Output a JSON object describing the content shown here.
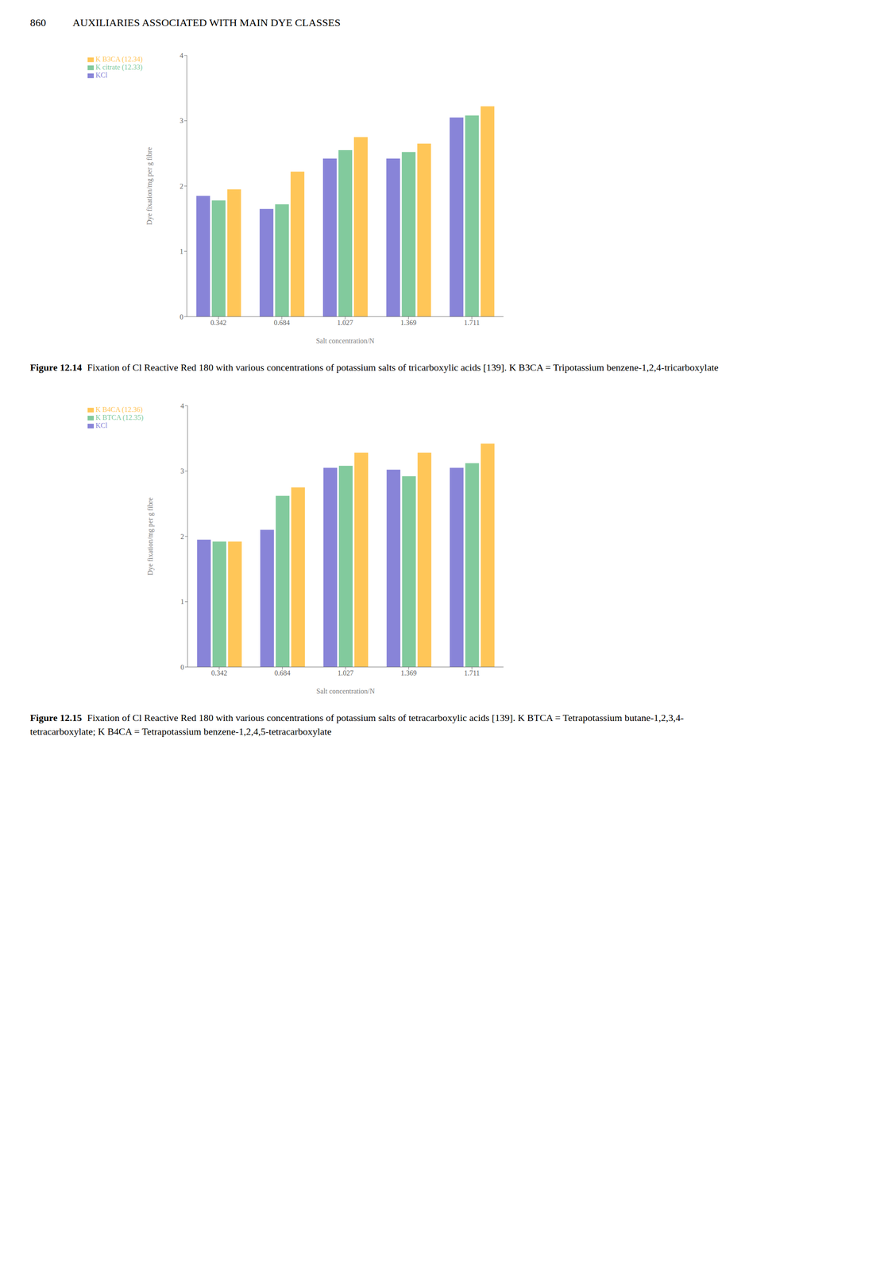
{
  "chart_data": [
    {
      "type": "bar",
      "x_label": "Salt concentration/N",
      "y_label": "Dye fixation/mg per g fibre",
      "categories": [
        "0.342",
        "0.684",
        "1.027",
        "1.369",
        "1.711"
      ],
      "series": [
        {
          "name": "KCl",
          "color": "#8884d8",
          "values": [
            1.85,
            1.65,
            2.42,
            2.42,
            3.05
          ]
        },
        {
          "name": "K citrate (12.33)",
          "color": "#82ca9d",
          "values": [
            1.78,
            1.72,
            2.55,
            2.52,
            3.08
          ]
        },
        {
          "name": "K B3CA (12.34)",
          "color": "#ffc658",
          "values": [
            1.95,
            2.22,
            2.75,
            2.65,
            3.22
          ]
        }
      ],
      "ylim": [
        0,
        4
      ],
      "yticks": [
        0,
        1,
        2,
        3,
        4
      ],
      "grid": false,
      "legend": "upper left",
      "annotations": [
        "860",
        "AUXILIARIES ASSOCIATED WITH MAIN DYE CLASSES",
        "Figure 12.14",
        "Fixation of Cl Reactive Red 180 with various concentrations of potassium salts of tricarboxylic acids [139]. K B3CA = Tripotassium benzene-1,2,4-tricarboxylate"
      ]
    },
    {
      "type": "bar",
      "x_label": "Salt concentration/N",
      "y_label": "Dye fixation/mg per g fibre",
      "categories": [
        "0.342",
        "0.684",
        "1.027",
        "1.369",
        "1.711"
      ],
      "series": [
        {
          "name": "KCl",
          "color": "#8884d8",
          "values": [
            1.95,
            2.1,
            3.05,
            3.02,
            3.05
          ]
        },
        {
          "name": "K BTCA (12.35)",
          "color": "#82ca9d",
          "values": [
            1.92,
            2.62,
            3.08,
            2.92,
            3.12
          ]
        },
        {
          "name": "K B4CA (12.36)",
          "color": "#ffc658",
          "values": [
            1.92,
            2.75,
            3.28,
            3.28,
            3.42
          ]
        }
      ],
      "ylim": [
        0,
        4
      ],
      "yticks": [
        0,
        1,
        2,
        3,
        4
      ],
      "grid": false,
      "legend": "upper left",
      "annotations": [
        "Figure 12.15",
        "Fixation of Cl Reactive Red 180 with various concentrations of potassium salts of tetracarboxylic acids [139]. K BTCA = Tetrapotassium butane-1,2,3,4-tetracarboxylate; K B4CA = Tetrapotassium benzene-1,2,4,5-tetracarboxylate"
      ]
    }
  ]
}
